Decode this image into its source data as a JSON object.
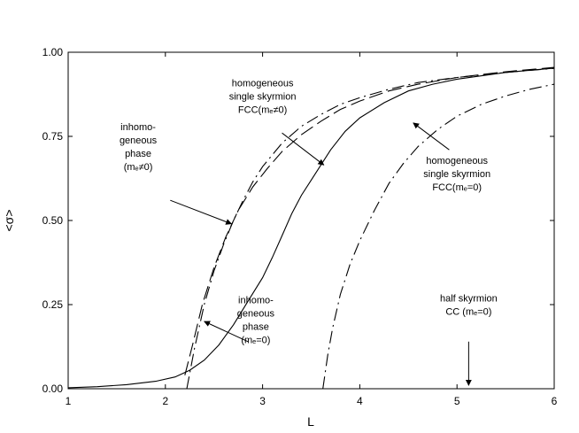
{
  "chart_data": {
    "type": "line",
    "xlabel": "L",
    "ylabel": "<σ>",
    "xlim": [
      1,
      6
    ],
    "ylim": [
      0,
      1
    ],
    "xticks": [
      "1",
      "2",
      "3",
      "4",
      "5",
      "6"
    ],
    "yticks": [
      "0.00",
      "0.25",
      "0.50",
      "0.75",
      "1.00"
    ],
    "grid": false,
    "legend": "none",
    "series": [
      {
        "style": "solid",
        "points": [
          [
            1.0,
            0.003
          ],
          [
            1.3,
            0.006
          ],
          [
            1.6,
            0.012
          ],
          [
            1.9,
            0.022
          ],
          [
            2.1,
            0.035
          ],
          [
            2.25,
            0.055
          ],
          [
            2.4,
            0.085
          ],
          [
            2.55,
            0.13
          ],
          [
            2.7,
            0.19
          ],
          [
            2.85,
            0.26
          ],
          [
            3.0,
            0.33
          ],
          [
            3.1,
            0.39
          ],
          [
            3.2,
            0.455
          ],
          [
            3.3,
            0.52
          ],
          [
            3.4,
            0.575
          ],
          [
            3.5,
            0.62
          ],
          [
            3.6,
            0.665
          ],
          [
            3.7,
            0.71
          ],
          [
            3.85,
            0.765
          ],
          [
            4.0,
            0.805
          ],
          [
            4.25,
            0.85
          ],
          [
            4.5,
            0.885
          ],
          [
            4.75,
            0.905
          ],
          [
            5.0,
            0.92
          ],
          [
            5.5,
            0.94
          ],
          [
            6.0,
            0.953
          ]
        ]
      },
      {
        "style": "dash-dot",
        "points": [
          [
            2.22,
            0.0
          ],
          [
            2.3,
            0.12
          ],
          [
            2.4,
            0.25
          ],
          [
            2.5,
            0.35
          ],
          [
            2.6,
            0.43
          ],
          [
            2.7,
            0.5
          ],
          [
            2.8,
            0.56
          ],
          [
            2.9,
            0.615
          ],
          [
            3.0,
            0.66
          ],
          [
            3.2,
            0.73
          ],
          [
            3.4,
            0.78
          ],
          [
            3.6,
            0.815
          ],
          [
            3.8,
            0.845
          ],
          [
            4.0,
            0.865
          ],
          [
            4.3,
            0.89
          ],
          [
            4.6,
            0.91
          ],
          [
            5.0,
            0.925
          ],
          [
            5.5,
            0.94
          ],
          [
            6.0,
            0.952
          ]
        ]
      },
      {
        "style": "long-dash",
        "points": [
          [
            2.2,
            0.04
          ],
          [
            2.28,
            0.13
          ],
          [
            2.38,
            0.25
          ],
          [
            2.5,
            0.36
          ],
          [
            2.62,
            0.45
          ],
          [
            2.75,
            0.53
          ],
          [
            2.9,
            0.6
          ],
          [
            3.05,
            0.655
          ],
          [
            3.2,
            0.705
          ],
          [
            3.4,
            0.755
          ],
          [
            3.6,
            0.795
          ],
          [
            3.8,
            0.83
          ],
          [
            4.0,
            0.855
          ],
          [
            4.3,
            0.885
          ],
          [
            4.6,
            0.905
          ],
          [
            5.0,
            0.925
          ],
          [
            5.5,
            0.942
          ],
          [
            6.0,
            0.955
          ]
        ]
      },
      {
        "style": "dash-dot",
        "points": [
          [
            3.62,
            0.0
          ],
          [
            3.67,
            0.1
          ],
          [
            3.72,
            0.18
          ],
          [
            3.8,
            0.28
          ],
          [
            3.9,
            0.37
          ],
          [
            4.0,
            0.44
          ],
          [
            4.15,
            0.53
          ],
          [
            4.3,
            0.61
          ],
          [
            4.45,
            0.67
          ],
          [
            4.6,
            0.72
          ],
          [
            4.8,
            0.77
          ],
          [
            5.0,
            0.81
          ],
          [
            5.25,
            0.845
          ],
          [
            5.5,
            0.87
          ],
          [
            5.75,
            0.89
          ],
          [
            6.0,
            0.905
          ]
        ]
      }
    ],
    "annotations": [
      {
        "lines": [
          "homogeneous",
          "single skyrmion",
          "FCC(mₑ≠0)"
        ],
        "text_at": [
          3.0,
          0.87
        ],
        "arrow_from": [
          3.2,
          0.76
        ],
        "arrow_to": [
          3.63,
          0.665
        ]
      },
      {
        "lines": [
          "inhomo-",
          "geneous",
          "phase",
          "(mₑ≠0)"
        ],
        "text_at": [
          1.72,
          0.72
        ],
        "arrow_from": [
          2.05,
          0.56
        ],
        "arrow_to": [
          2.68,
          0.49
        ]
      },
      {
        "lines": [
          "homogeneous",
          "single skyrmion",
          "FCC(mₑ=0)"
        ],
        "text_at": [
          5.0,
          0.64
        ],
        "arrow_from": [
          4.92,
          0.71
        ],
        "arrow_to": [
          4.55,
          0.79
        ]
      },
      {
        "lines": [
          "inhomo-",
          "geneous",
          "phase",
          "(mₑ=0)"
        ],
        "text_at": [
          2.93,
          0.205
        ],
        "arrow_from": [
          2.85,
          0.14
        ],
        "arrow_to": [
          2.4,
          0.2
        ]
      },
      {
        "lines": [
          "half skyrmion",
          "CC (mₑ=0)"
        ],
        "text_at": [
          5.12,
          0.25
        ],
        "arrow_from": [
          5.12,
          0.14
        ],
        "arrow_to": [
          5.12,
          0.01
        ]
      }
    ]
  }
}
